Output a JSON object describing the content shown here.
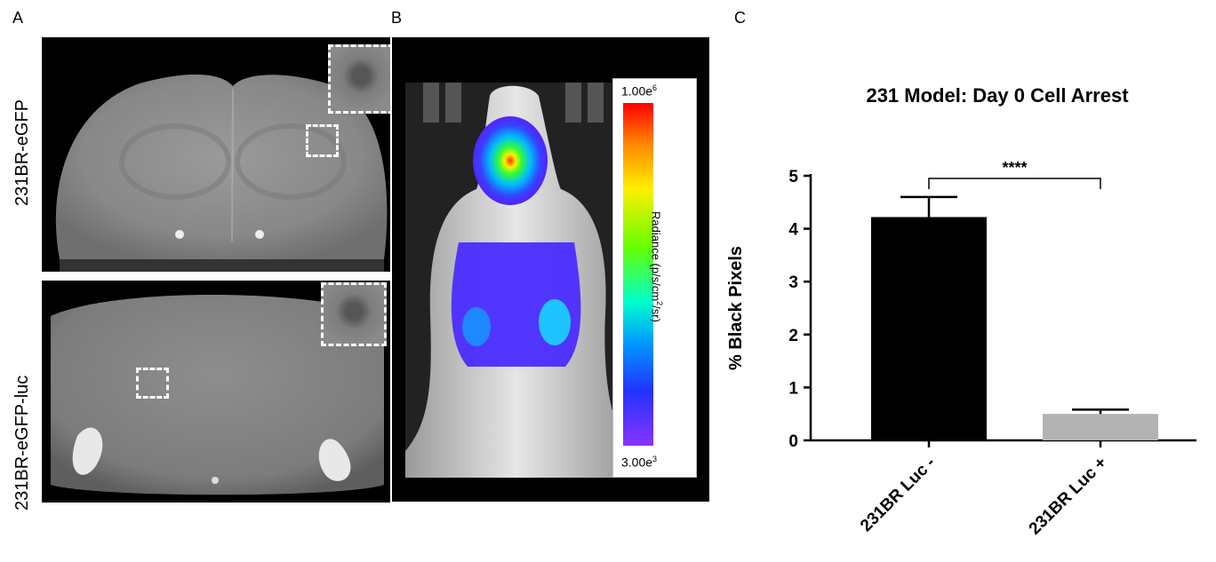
{
  "panels": {
    "a": {
      "letter": "A",
      "label_top": "231BR-eGFP",
      "label_bottom": "231BR-eGFP-luc"
    },
    "b": {
      "letter": "B",
      "colorbar_max": "1.00e",
      "colorbar_max_exp": "6",
      "colorbar_min": "3.00e",
      "colorbar_min_exp": "3",
      "colorbar_label_pre": "Radiance (p/s/cm",
      "colorbar_label_exp": "2",
      "colorbar_label_post": "/sr)"
    },
    "c": {
      "letter": "C"
    }
  },
  "chart_data": {
    "type": "bar",
    "title": "231 Model: Day 0 Cell Arrest",
    "xlabel": "",
    "ylabel": "% Black  Pixels",
    "categories": [
      "231BR Luc -",
      "231BR Luc +"
    ],
    "values": [
      4.22,
      0.5
    ],
    "errors": [
      0.38,
      0.08
    ],
    "bar_colors": [
      "#000000",
      "#b3b3b3"
    ],
    "ylim": [
      0,
      5
    ],
    "yticks": [
      "0",
      "1",
      "2",
      "3",
      "4",
      "5"
    ],
    "significance": "****",
    "grid": false
  }
}
